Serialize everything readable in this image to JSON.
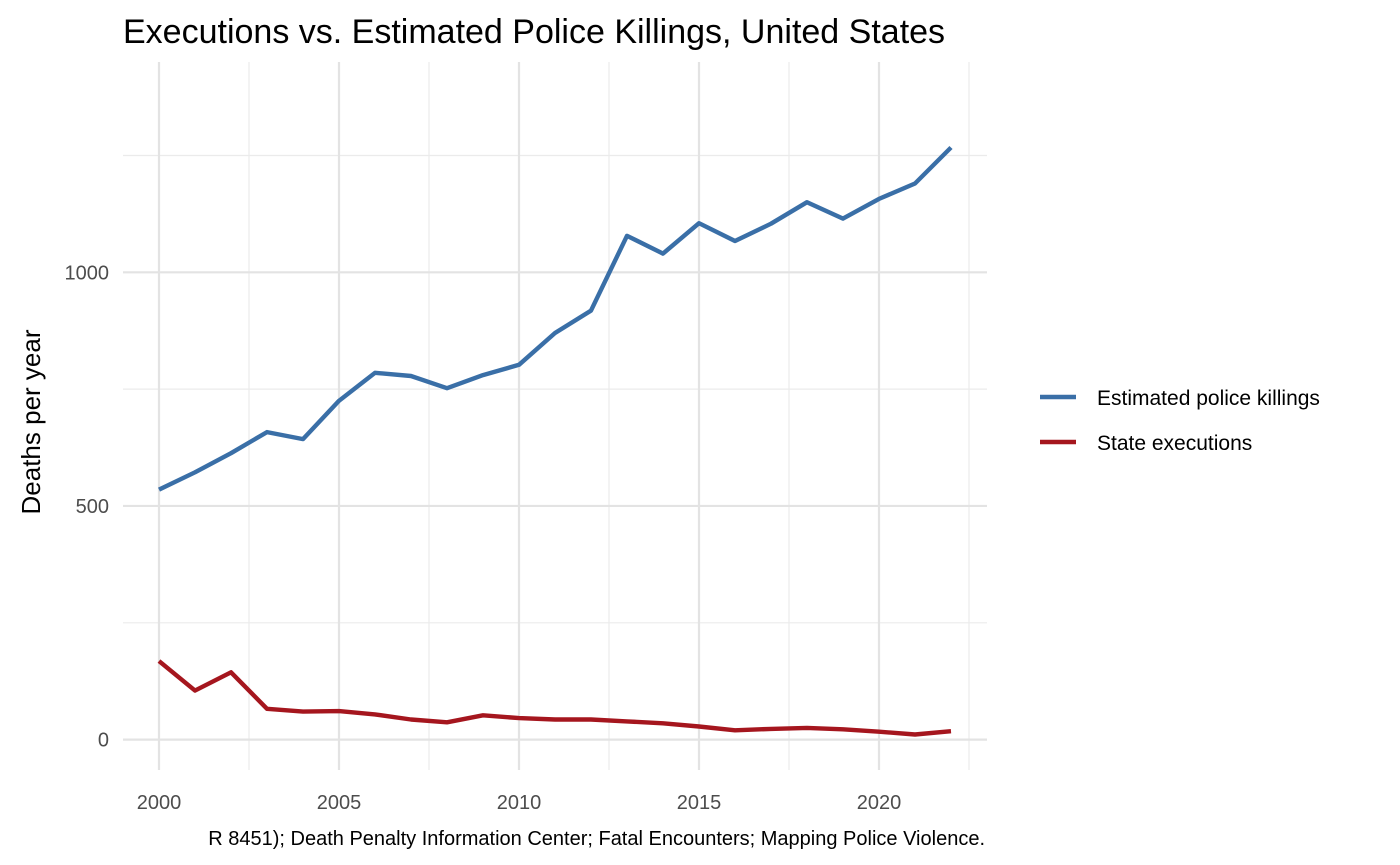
{
  "chart_data": {
    "type": "line",
    "title": "Executions vs. Estimated Police Killings, United States",
    "ylabel": "Deaths per year",
    "xlabel": "",
    "caption": "R 8451); Death Penalty Information Center; Fatal Encounters; Mapping Police Violence.",
    "xlim": [
      1999.0,
      2023.0
    ],
    "ylim": [
      -65,
      1450
    ],
    "x_ticks": [
      2000,
      2005,
      2010,
      2015,
      2020
    ],
    "y_ticks": [
      0,
      500,
      1000
    ],
    "grid": true,
    "legend_position": "right",
    "x": [
      2000,
      2001,
      2002,
      2003,
      2004,
      2005,
      2006,
      2007,
      2008,
      2009,
      2010,
      2011,
      2012,
      2013,
      2014,
      2015,
      2016,
      2017,
      2018,
      2019,
      2020,
      2021,
      2022
    ],
    "series": [
      {
        "name": "Estimated police killings",
        "color": "#3a6fa7",
        "values": [
          535,
          572,
          613,
          658,
          643,
          725,
          785,
          778,
          752,
          780,
          802,
          870,
          918,
          1078,
          1040,
          1105,
          1067,
          1104,
          1150,
          1115,
          1157,
          1190,
          1267
        ]
      },
      {
        "name": "State executions",
        "color": "#a5161e",
        "values": [
          168,
          105,
          144,
          66,
          60,
          61,
          54,
          43,
          37,
          52,
          46,
          43,
          43,
          39,
          35,
          28,
          20,
          23,
          25,
          22,
          17,
          11,
          18
        ]
      }
    ]
  }
}
